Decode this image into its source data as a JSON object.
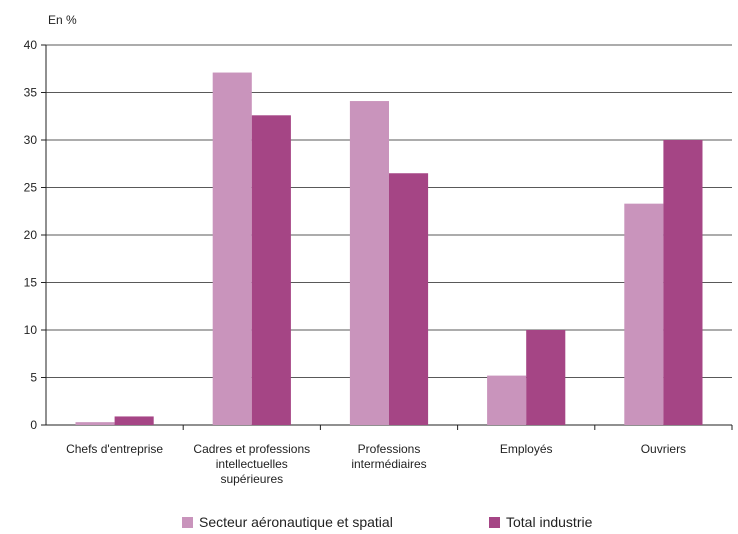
{
  "chart_data": {
    "type": "bar",
    "unit_label": "En %",
    "categories": [
      [
        "Chefs d'entreprise"
      ],
      [
        "Cadres et professions",
        "intellectuelles",
        "supérieures"
      ],
      [
        "Professions",
        "intermédiaires"
      ],
      [
        "Employés"
      ],
      [
        "Ouvriers"
      ]
    ],
    "series": [
      {
        "name": "Secteur aéronautique et spatial",
        "color": "#c994bc",
        "values": [
          0.3,
          37.1,
          34.1,
          5.2,
          23.3
        ]
      },
      {
        "name": "Total industrie",
        "color": "#a54585",
        "values": [
          0.9,
          32.6,
          26.5,
          10.0,
          30.0
        ]
      }
    ],
    "ylim": [
      0,
      40
    ],
    "yticks": [
      0,
      5,
      10,
      15,
      20,
      25,
      30,
      35,
      40
    ],
    "grid": true,
    "legend_position": "bottom"
  }
}
